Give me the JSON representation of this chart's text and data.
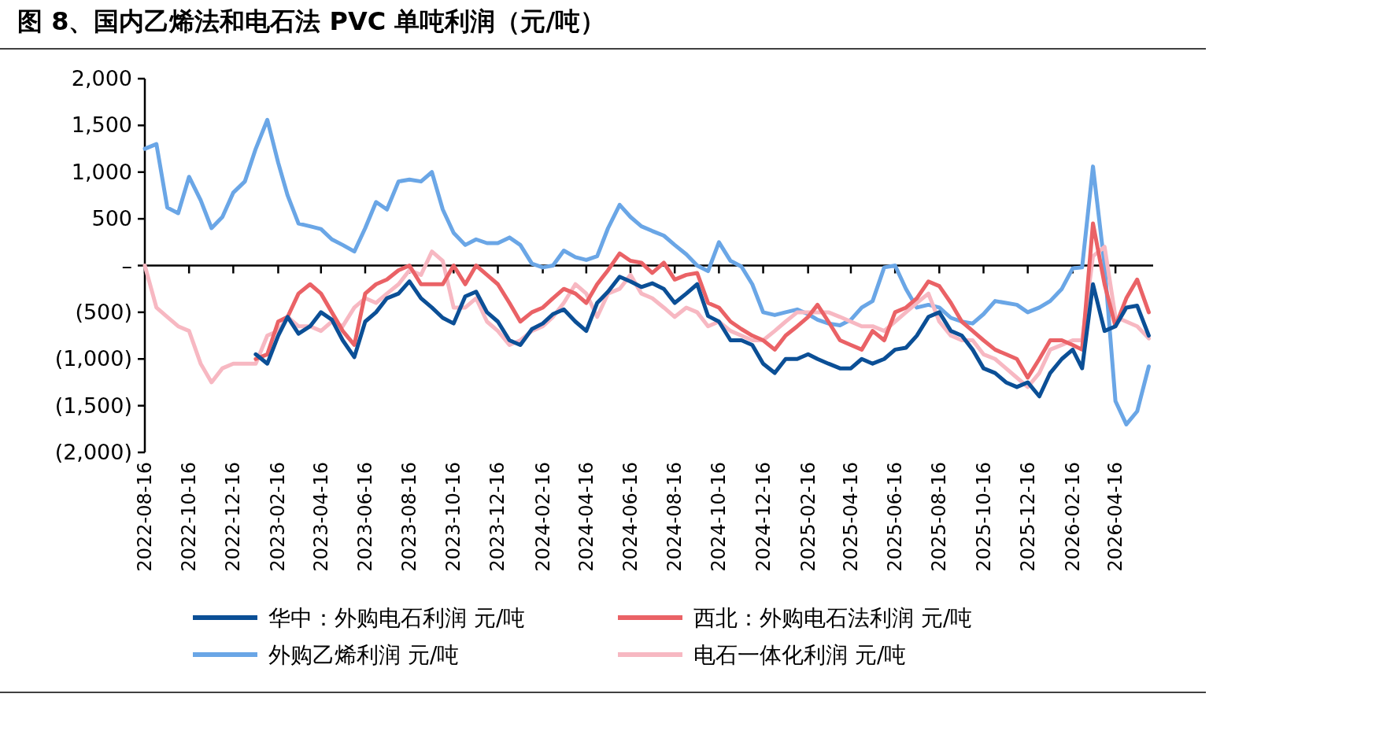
{
  "chart_data": {
    "type": "line",
    "title": "图 8、国内乙烯法和电石法 PVC 单吨利润（元/吨）",
    "x": [
      "2022-08-16",
      "2022-09-01",
      "2022-09-16",
      "2022-10-01",
      "2022-10-16",
      "2022-11-01",
      "2022-11-16",
      "2022-12-01",
      "2022-12-16",
      "2023-01-01",
      "2023-01-16",
      "2023-02-01",
      "2023-02-16",
      "2023-03-01",
      "2023-03-16",
      "2023-04-01",
      "2023-04-16",
      "2023-05-01",
      "2023-05-16",
      "2023-06-01",
      "2023-06-16",
      "2023-07-01",
      "2023-07-16",
      "2023-08-01",
      "2023-08-16",
      "2023-09-01",
      "2023-09-16",
      "2023-10-01",
      "2023-10-16",
      "2023-11-01",
      "2023-11-16",
      "2023-12-01",
      "2023-12-16",
      "2024-01-01",
      "2024-01-16",
      "2024-02-01",
      "2024-02-16",
      "2024-03-01",
      "2024-03-16",
      "2024-04-01",
      "2024-04-16",
      "2024-05-01",
      "2024-05-16",
      "2024-06-01",
      "2024-06-16",
      "2024-07-01",
      "2024-07-16",
      "2024-08-01",
      "2024-08-16",
      "2024-09-01",
      "2024-09-16",
      "2024-10-01",
      "2024-10-16",
      "2024-11-01",
      "2024-11-16",
      "2024-12-01",
      "2024-12-16",
      "2025-01-01",
      "2025-01-16",
      "2025-02-01",
      "2025-02-16",
      "2025-03-01",
      "2025-03-16",
      "2025-04-01",
      "2025-04-16",
      "2025-05-01",
      "2025-05-16",
      "2025-06-01",
      "2025-06-16",
      "2025-07-01",
      "2025-07-16",
      "2025-08-01",
      "2025-08-16",
      "2025-09-01",
      "2025-09-16",
      "2025-10-01",
      "2025-10-16",
      "2025-11-01",
      "2025-11-16",
      "2025-12-01",
      "2025-12-16",
      "2026-01-01",
      "2026-01-16",
      "2026-02-01",
      "2026-02-16",
      "2026-03-01",
      "2026-03-16",
      "2026-04-01",
      "2026-04-16",
      "2026-05-01",
      "2026-05-16",
      "2026-06-01"
    ],
    "xlim": [
      "2022-08-16",
      "2026-06-07"
    ],
    "xticks": [
      "2022-08-16",
      "2022-10-16",
      "2022-12-16",
      "2023-02-16",
      "2023-04-16",
      "2023-06-16",
      "2023-08-16",
      "2023-10-16",
      "2023-12-16",
      "2024-02-16",
      "2024-04-16",
      "2024-06-16",
      "2024-08-16",
      "2024-10-16",
      "2024-12-16",
      "2025-02-16",
      "2025-04-16",
      "2025-06-16",
      "2025-08-16",
      "2025-10-16",
      "2025-12-16",
      "2026-02-16",
      "2026-04-16"
    ],
    "ylim": [
      -2000,
      2000
    ],
    "yticks": [
      {
        "value": 2000,
        "label": "2,000"
      },
      {
        "value": 1500,
        "label": "1,500"
      },
      {
        "value": 1000,
        "label": "1,000"
      },
      {
        "value": 500,
        "label": "500"
      },
      {
        "value": 0,
        "label": "–"
      },
      {
        "value": -500,
        "label": "(500)"
      },
      {
        "value": -1000,
        "label": "(1,000)"
      },
      {
        "value": -1500,
        "label": "(1,500)"
      },
      {
        "value": -2000,
        "label": "(2,000)"
      }
    ],
    "series": [
      {
        "name": "华中：外购电石利润  元/吨",
        "color": "#0b4f96",
        "values": [
          null,
          null,
          null,
          null,
          null,
          null,
          null,
          null,
          null,
          null,
          -950,
          -1050,
          -750,
          -550,
          -730,
          -650,
          -500,
          -580,
          -800,
          -980,
          -600,
          -500,
          -350,
          -300,
          -170,
          -350,
          -450,
          -560,
          -620,
          -330,
          -280,
          -500,
          -600,
          -800,
          -850,
          -680,
          -620,
          -520,
          -470,
          -600,
          -700,
          -400,
          -280,
          -120,
          -170,
          -230,
          -190,
          -250,
          -400,
          -300,
          -200,
          -540,
          -600,
          -800,
          -800,
          -850,
          -1050,
          -1150,
          -1000,
          -1000,
          -950,
          -1000,
          -1050,
          -1100,
          -1100,
          -1000,
          -1050,
          -1000,
          -900,
          -880,
          -750,
          -550,
          -500,
          -700,
          -750,
          -900,
          -1100,
          -1150,
          -1250,
          -1300,
          -1250,
          -1400,
          -1150,
          -1000,
          -900,
          -1100,
          -200,
          -700,
          -650,
          -450,
          -430,
          -750
        ]
      },
      {
        "name": "西北：外购电石法利润  元/吨",
        "color": "#ea6266",
        "values": [
          null,
          null,
          null,
          null,
          null,
          null,
          null,
          null,
          null,
          null,
          -1000,
          -950,
          -600,
          -550,
          -300,
          -200,
          -300,
          -500,
          -700,
          -850,
          -300,
          -200,
          -150,
          -50,
          0,
          -200,
          -200,
          -200,
          0,
          -200,
          0,
          -100,
          -200,
          -400,
          -600,
          -500,
          -450,
          -350,
          -250,
          -300,
          -400,
          -200,
          -50,
          130,
          50,
          30,
          -80,
          30,
          -150,
          -100,
          -80,
          -400,
          -450,
          -600,
          -680,
          -750,
          -800,
          -900,
          -750,
          -650,
          -550,
          -420,
          -600,
          -800,
          -850,
          -900,
          -700,
          -800,
          -500,
          -450,
          -350,
          -170,
          -220,
          -400,
          -600,
          -700,
          -800,
          -900,
          -950,
          -1000,
          -1200,
          -1000,
          -800,
          -800,
          -850,
          -900,
          450,
          -200,
          -650,
          -350,
          -150,
          -500
        ]
      },
      {
        "name": "外购乙烯利润  元/吨",
        "color": "#6aa6e6",
        "values": [
          1250,
          1300,
          620,
          560,
          950,
          700,
          400,
          520,
          780,
          900,
          1250,
          1560,
          1100,
          750,
          450,
          420,
          390,
          280,
          220,
          150,
          400,
          680,
          600,
          900,
          920,
          900,
          1000,
          600,
          350,
          220,
          280,
          240,
          240,
          300,
          220,
          20,
          -20,
          0,
          160,
          90,
          60,
          100,
          400,
          650,
          520,
          420,
          370,
          320,
          220,
          120,
          0,
          -60,
          250,
          50,
          -10,
          -200,
          -500,
          -530,
          -500,
          -470,
          -520,
          -580,
          -620,
          -640,
          -580,
          -450,
          -380,
          -20,
          0,
          -250,
          -450,
          -420,
          -450,
          -560,
          -600,
          -620,
          -520,
          -380,
          -400,
          -420,
          -500,
          -450,
          -380,
          -250,
          -30,
          -20,
          1060,
          0,
          -1450,
          -1700,
          -1560,
          -1080
        ]
      },
      {
        "name": "电石一体化利润  元/吨",
        "color": "#f7b8c2",
        "values": [
          0,
          -450,
          -550,
          -650,
          -700,
          -1050,
          -1250,
          -1100,
          -1050,
          -1050,
          -1050,
          -750,
          -700,
          -550,
          -650,
          -650,
          -700,
          -600,
          -650,
          -450,
          -350,
          -400,
          -300,
          -200,
          -50,
          -100,
          150,
          50,
          -450,
          -450,
          -350,
          -600,
          -700,
          -850,
          -800,
          -700,
          -650,
          -550,
          -400,
          -200,
          -300,
          -550,
          -300,
          -250,
          -100,
          -300,
          -350,
          -450,
          -550,
          -450,
          -500,
          -650,
          -600,
          -700,
          -750,
          -800,
          -800,
          -700,
          -600,
          -500,
          -500,
          -500,
          -500,
          -550,
          -600,
          -650,
          -650,
          -700,
          -600,
          -500,
          -400,
          -300,
          -600,
          -750,
          -800,
          -800,
          -950,
          -1000,
          -1100,
          -1200,
          -1300,
          -1150,
          -900,
          -850,
          -800,
          -800,
          100,
          200,
          -550,
          -600,
          -650,
          -780
        ]
      }
    ],
    "legend": "bottom",
    "marker": "none",
    "line_style": "solid"
  }
}
